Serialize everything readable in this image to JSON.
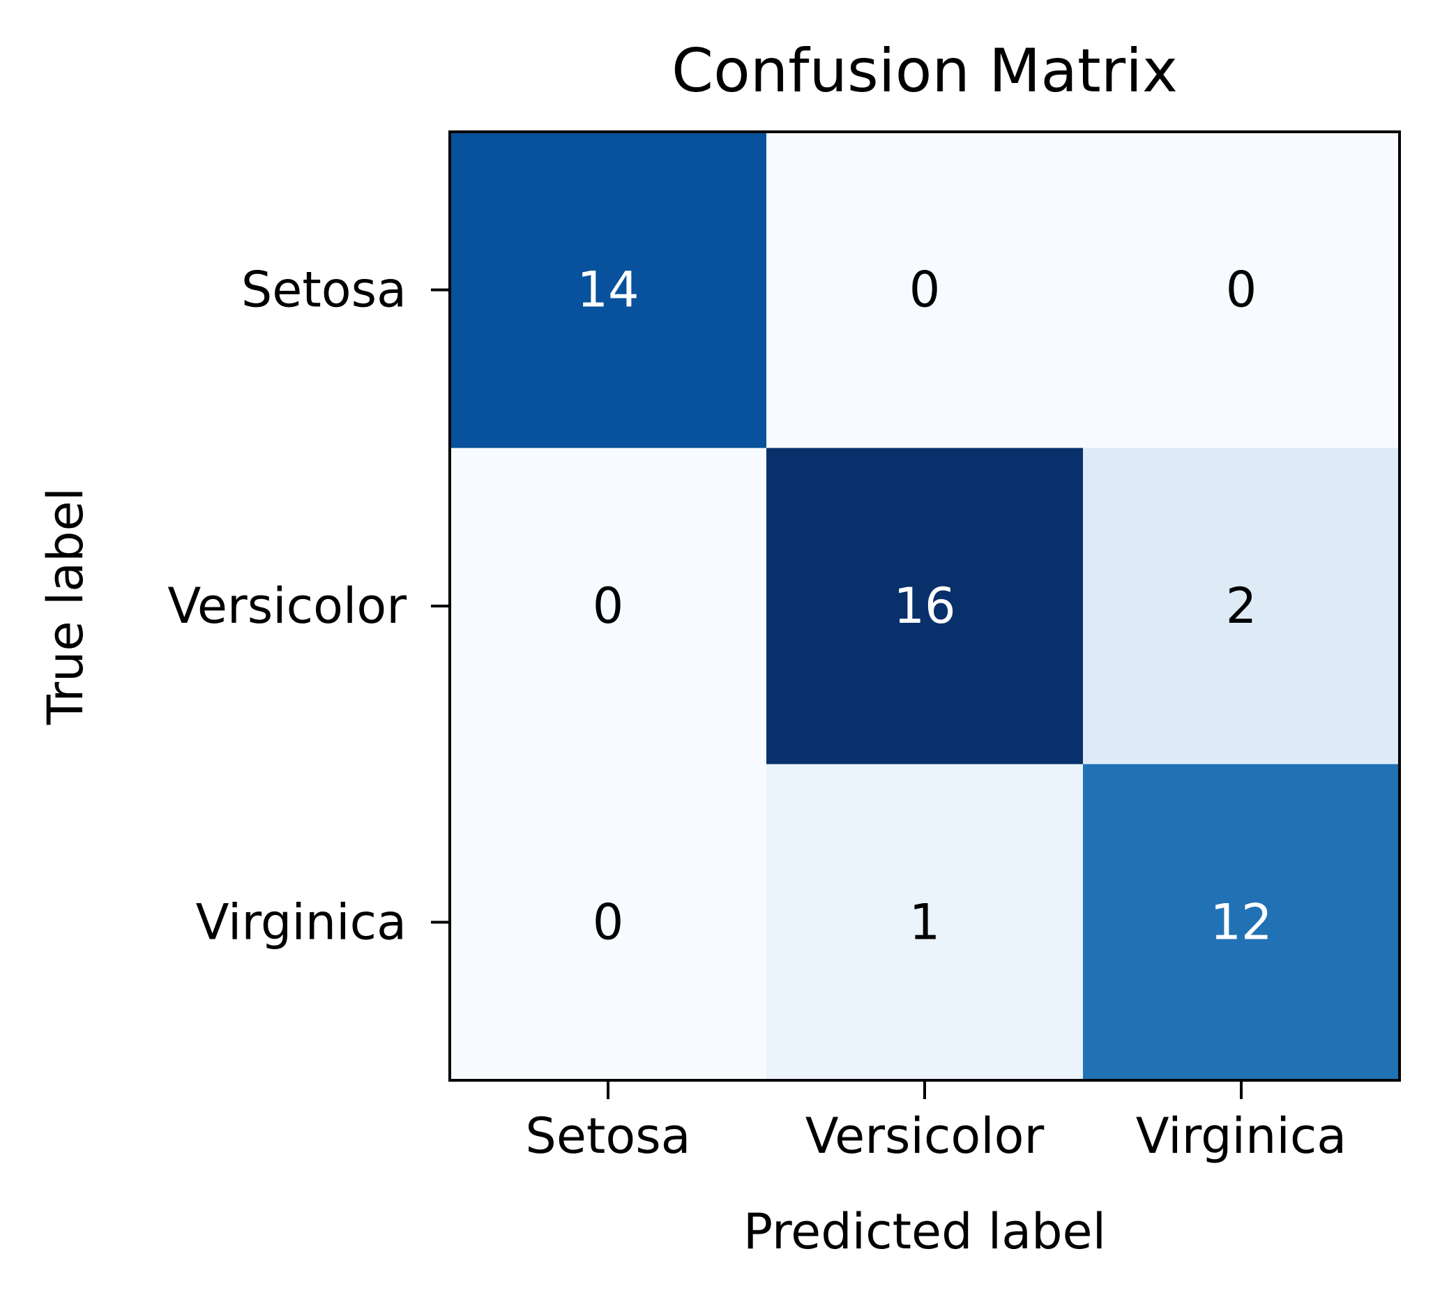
{
  "chart_data": {
    "type": "heatmap",
    "title": "Confusion Matrix",
    "xlabel": "Predicted label",
    "ylabel": "True label",
    "x_categories": [
      "Setosa",
      "Versicolor",
      "Virginica"
    ],
    "y_categories": [
      "Setosa",
      "Versicolor",
      "Virginica"
    ],
    "values": [
      [
        14,
        0,
        0
      ],
      [
        0,
        16,
        2
      ],
      [
        0,
        1,
        12
      ]
    ],
    "colormap": "Blues",
    "colorbar": false,
    "grid": false
  }
}
